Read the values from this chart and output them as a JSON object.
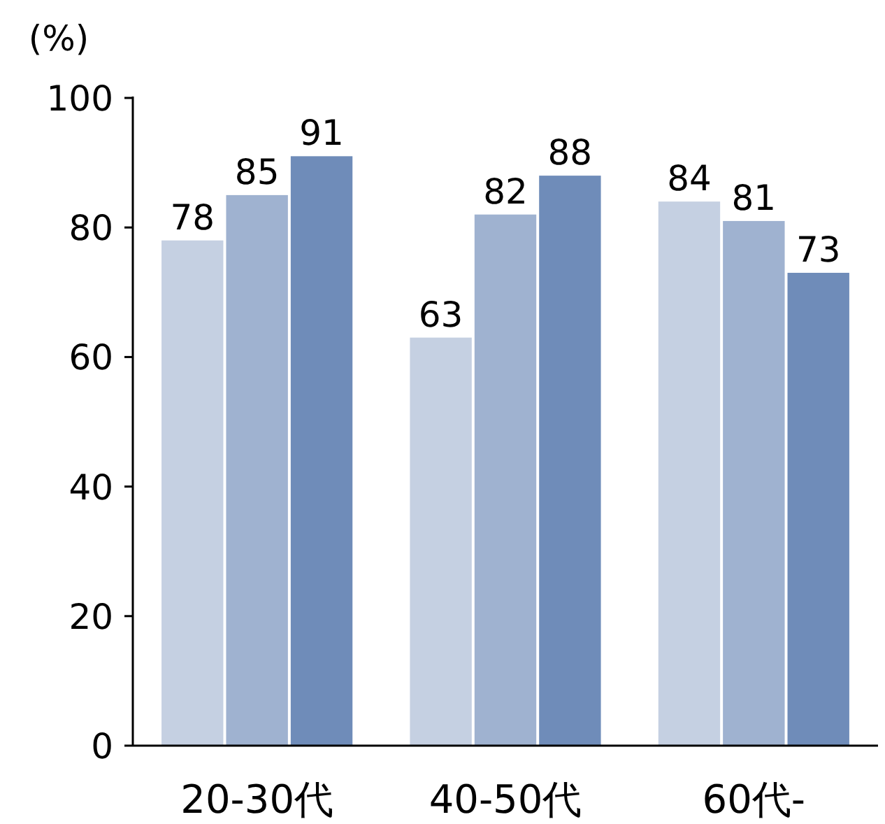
{
  "chart_data": {
    "type": "bar",
    "ylabel": "(%)",
    "categories": [
      "20-30代",
      "40-50代",
      "60代-"
    ],
    "series": [
      {
        "color": "#c5d0e2",
        "values": [
          78,
          63,
          84
        ]
      },
      {
        "color": "#9fb2d0",
        "values": [
          85,
          82,
          81
        ]
      },
      {
        "color": "#6f8cb9",
        "values": [
          91,
          88,
          73
        ]
      }
    ],
    "ylim": [
      0,
      100
    ],
    "yticks": [
      0,
      20,
      40,
      60,
      80,
      100
    ],
    "data_labels": true,
    "grid": false
  }
}
